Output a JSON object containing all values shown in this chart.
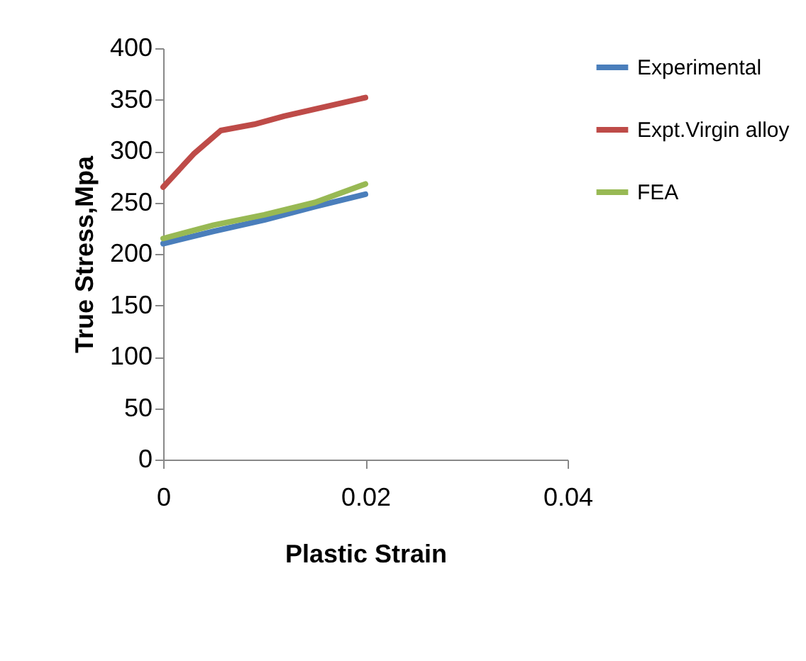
{
  "chart_data": {
    "type": "line",
    "xlabel": "Plastic Strain",
    "ylabel": "True  Stress,Mpa",
    "xlim": [
      0,
      0.04
    ],
    "xticks": [
      0,
      0.02,
      0.04
    ],
    "ylim": [
      0,
      400
    ],
    "yticks": [
      0,
      50,
      100,
      150,
      200,
      250,
      300,
      350,
      400
    ],
    "grid": false,
    "legend": "right",
    "marker": "none",
    "line_style": "solid",
    "series": [
      {
        "name": "Experimental",
        "color": "#4a7ebb",
        "x": [
          0,
          0.005,
          0.01,
          0.015,
          0.02
        ],
        "values": [
          210,
          222,
          233,
          246,
          258
        ]
      },
      {
        "name": "Expt.Virgin alloy",
        "color": "#be4b48",
        "x": [
          0,
          0.003,
          0.0057,
          0.009,
          0.012,
          0.016,
          0.02
        ],
        "values": [
          265,
          297,
          320,
          326,
          334,
          343,
          352
        ]
      },
      {
        "name": "FEA",
        "color": "#98b954",
        "x": [
          0,
          0.005,
          0.01,
          0.015,
          0.02
        ],
        "values": [
          215,
          228,
          238,
          250,
          268
        ]
      }
    ]
  }
}
